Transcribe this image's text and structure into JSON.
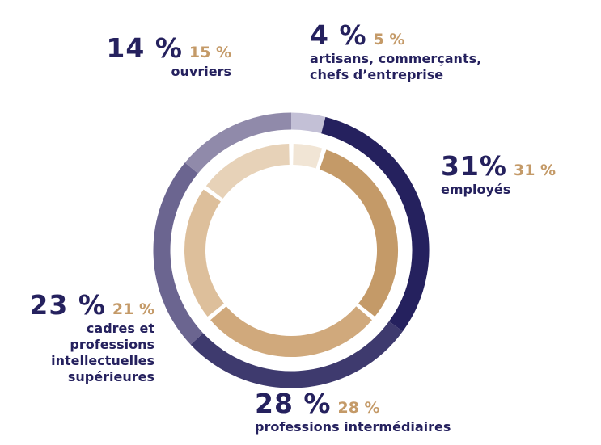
{
  "chart_data": {
    "type": "donut",
    "categories": [
      "artisans, commerçants, chefs d’entreprise",
      "employés",
      "professions intermédiaires",
      "cadres et professions intellectuelles supérieures",
      "ouvriers"
    ],
    "series": [
      {
        "colors": [
          "#c3c0d6",
          "#25215e",
          "#3e3a6e",
          "#6b6590",
          "#908aaa"
        ],
        "values": [
          4,
          31,
          28,
          23,
          14
        ],
        "value_labels": [
          "4 %",
          "31%",
          "28 %",
          "23 %",
          "14 %"
        ]
      },
      {
        "colors": [
          "#f1e5d5",
          "#c49a68",
          "#d0a97c",
          "#ddbf9b",
          "#e7d2b8"
        ],
        "values": [
          5,
          31,
          28,
          21,
          15
        ],
        "value_labels": [
          "5 %",
          "31 %",
          "28 %",
          "21 %",
          "15 %"
        ]
      }
    ]
  }
}
